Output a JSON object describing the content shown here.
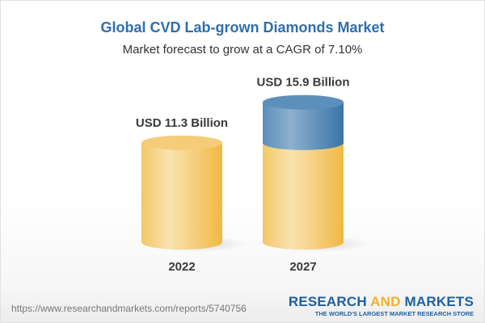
{
  "header": {
    "title": "Global CVD Lab-grown Diamonds Market",
    "subtitle": "Market forecast to grow at a CAGR of 7.10%"
  },
  "chart_data": {
    "type": "bar",
    "style": "3d-cylinder",
    "categories": [
      "2022",
      "2027"
    ],
    "values": [
      11.3,
      15.9
    ],
    "data_labels": [
      "USD 11.3 Billion",
      "USD 15.9 Billion"
    ],
    "unit": "USD Billion",
    "colors": {
      "base": "#f3c25e",
      "growth": "#4a84b5"
    }
  },
  "footer": {
    "url": "https://www.researchandmarkets.com/reports/5740756",
    "logo_word1": "RESEARCH",
    "logo_word2": "AND",
    "logo_word3": "MARKETS",
    "tagline": "THE WORLD'S LARGEST MARKET RESEARCH STORE"
  }
}
